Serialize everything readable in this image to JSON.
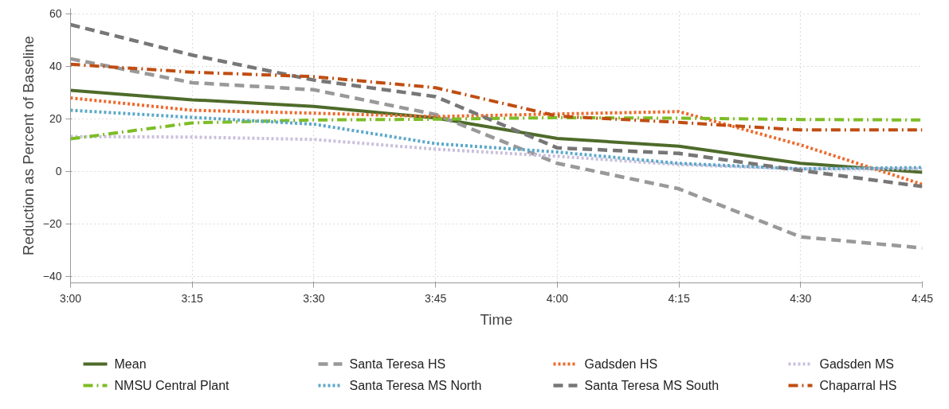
{
  "chart_data": {
    "type": "line",
    "xlabel": "Time",
    "ylabel": "Reduction as Percent of Baseline",
    "x": [
      3.0,
      3.25,
      3.5,
      3.75,
      4.0,
      4.25,
      4.5,
      4.75
    ],
    "xlim": [
      3.0,
      4.75
    ],
    "xticks": [
      {
        "value": 3.0,
        "label": "3:00"
      },
      {
        "value": 3.25,
        "label": "3:15"
      },
      {
        "value": 3.5,
        "label": "3:30"
      },
      {
        "value": 3.75,
        "label": "3:45"
      },
      {
        "value": 4.0,
        "label": "4:00"
      },
      {
        "value": 4.25,
        "label": "4:15"
      },
      {
        "value": 4.5,
        "label": "4:30"
      },
      {
        "value": 4.75,
        "label": "4:45"
      }
    ],
    "ylim": [
      -42.5,
      62
    ],
    "yticks": [
      -40,
      -20,
      0,
      20,
      40,
      60
    ],
    "grid": true,
    "legend": "bottom",
    "series": [
      {
        "name": "Mean",
        "color": "#4e6b2a",
        "line_style": "solid",
        "values": [
          30.8,
          27.2,
          24.7,
          20.3,
          12.5,
          9.5,
          3,
          -0.4
        ]
      },
      {
        "name": "Santa Teresa HS",
        "color": "#999999",
        "line_style": "dashed",
        "values": [
          42.8,
          33.7,
          31,
          21.6,
          3,
          -6.7,
          -25,
          -29.2
        ]
      },
      {
        "name": "Gadsden HS",
        "color": "#ec6a2c",
        "line_style": "dotted",
        "values": [
          27.9,
          23.2,
          22.1,
          20.8,
          21.8,
          22.7,
          10,
          -5
        ]
      },
      {
        "name": "Gadsden MS",
        "color": "#c9c0dc",
        "line_style": "dotted",
        "values": [
          13.2,
          13,
          12.1,
          8.4,
          5.7,
          2.5,
          0.9,
          0.9
        ]
      },
      {
        "name": "NMSU Central Plant",
        "color": "#7dbd26",
        "line_style": "dashdot",
        "values": [
          12.3,
          18.4,
          19.5,
          19.8,
          20.4,
          20.2,
          19.7,
          19.5
        ]
      },
      {
        "name": "Santa Teresa MS North",
        "color": "#5ba8c8",
        "line_style": "dotted",
        "values": [
          23.2,
          20.5,
          17.9,
          10.5,
          7.3,
          3,
          0.9,
          1.4
        ]
      },
      {
        "name": "Santa Teresa MS South",
        "color": "#777777",
        "line_style": "dashed",
        "values": [
          55.8,
          44.2,
          34.7,
          28.4,
          8.9,
          6.8,
          0.3,
          -5.8
        ]
      },
      {
        "name": "Chaparral HS",
        "color": "#c04d12",
        "line_style": "dashdot",
        "values": [
          40.7,
          37.7,
          36,
          31.8,
          21,
          18.6,
          15.7,
          15.7
        ]
      }
    ]
  }
}
